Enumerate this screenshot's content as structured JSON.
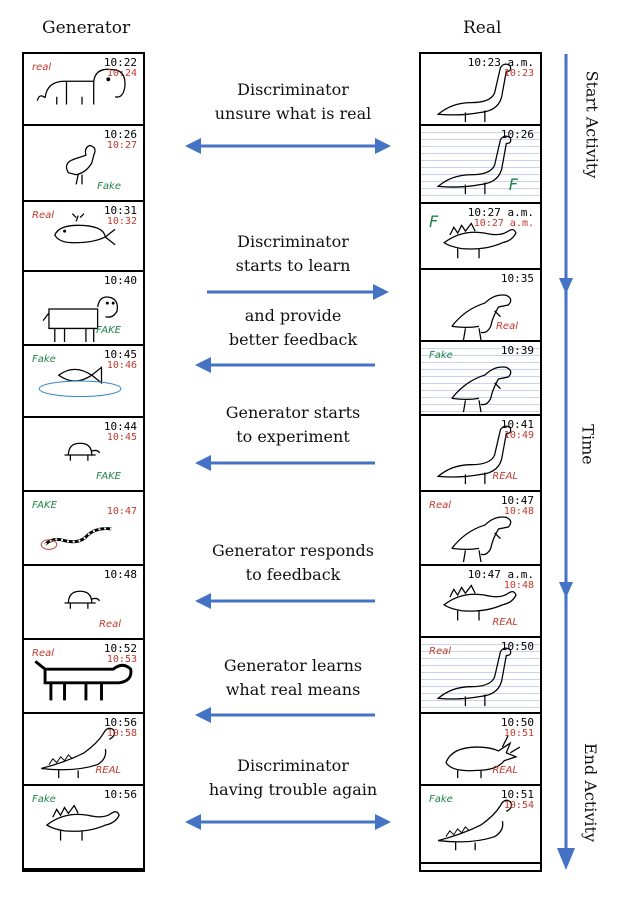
{
  "headers": {
    "generator": "Generator",
    "real": "Real"
  },
  "axis": {
    "start": "Start Activity",
    "time": "Time",
    "end": "End Activity"
  },
  "steps": [
    {
      "line1": "Discriminator",
      "line2": "unsure what is real"
    },
    {
      "line1": "Discriminator",
      "line2": "starts to learn"
    },
    {
      "line1": "and provide",
      "line2": "better feedback"
    },
    {
      "line1": "Generator starts",
      "line2": "to experiment"
    },
    {
      "line1": "Generator responds",
      "line2": "to feedback"
    },
    {
      "line1": "Generator learns",
      "line2": "what real means"
    },
    {
      "line1": "Discriminator",
      "line2": "having trouble again"
    }
  ],
  "generator_cards": [
    {
      "time": "10:22",
      "note": "10:24",
      "tag": "real",
      "subject": "elephant"
    },
    {
      "time": "10:26",
      "note": "10:27",
      "tag": "Fake",
      "subject": "bird"
    },
    {
      "time": "10:31",
      "note": "10:32",
      "tag": "Real",
      "subject": "whale"
    },
    {
      "time": "10:40",
      "note": "",
      "tag": "FAKE",
      "subject": "cow"
    },
    {
      "time": "10:45",
      "note": "10:46",
      "tag": "Fake",
      "subject": "fish"
    },
    {
      "time": "10:44",
      "note": "10:45",
      "tag": "FAKE",
      "subject": "turtle"
    },
    {
      "time": "",
      "note": "10:47",
      "tag": "FAKE",
      "subject": "snake"
    },
    {
      "time": "10:48",
      "note": "",
      "tag": "Real",
      "subject": "turtle"
    },
    {
      "time": "10:52",
      "note": "10:53",
      "tag": "Real",
      "subject": "dog"
    },
    {
      "time": "10:56",
      "note": "10:58",
      "tag": "REAL",
      "subject": "dinosaur"
    },
    {
      "time": "10:56",
      "note": "",
      "tag": "Fake",
      "subject": "stegosaurus"
    }
  ],
  "real_cards": [
    {
      "time": "10:23 a.m.",
      "note": "10:23",
      "tag": "",
      "subject": "long-neck dinosaur"
    },
    {
      "time": "10:26",
      "note": "",
      "tag": "F",
      "subject": "long-neck dinosaur"
    },
    {
      "time": "10:27 a.m.",
      "note": "10:27 a.m.",
      "tag": "F",
      "subject": "stegosaurus"
    },
    {
      "time": "10:35",
      "note": "",
      "tag": "Real",
      "subject": "t-rex"
    },
    {
      "time": "10:39",
      "note": "",
      "tag": "Fake",
      "subject": "t-rex"
    },
    {
      "time": "10:41",
      "note": "10:49",
      "tag": "REAL",
      "subject": "long-neck dinosaur"
    },
    {
      "time": "10:47",
      "note": "10:48",
      "tag": "Real",
      "subject": "t-rex"
    },
    {
      "time": "10:47 a.m.",
      "note": "10:48",
      "tag": "REAL",
      "subject": "stegosaurus"
    },
    {
      "time": "10:50",
      "note": "",
      "tag": "Real",
      "subject": "long-neck dinosaur"
    },
    {
      "time": "10:50",
      "note": "10:51",
      "tag": "REAL",
      "subject": "triceratops"
    },
    {
      "time": "10:51",
      "note": "10:54",
      "tag": "Fake",
      "subject": "dinosaur"
    }
  ],
  "colors": {
    "arrow": "#4472c4",
    "text": "#111111",
    "red": "#c0392b",
    "green": "#1e8449",
    "blue": "#2e86c1"
  }
}
